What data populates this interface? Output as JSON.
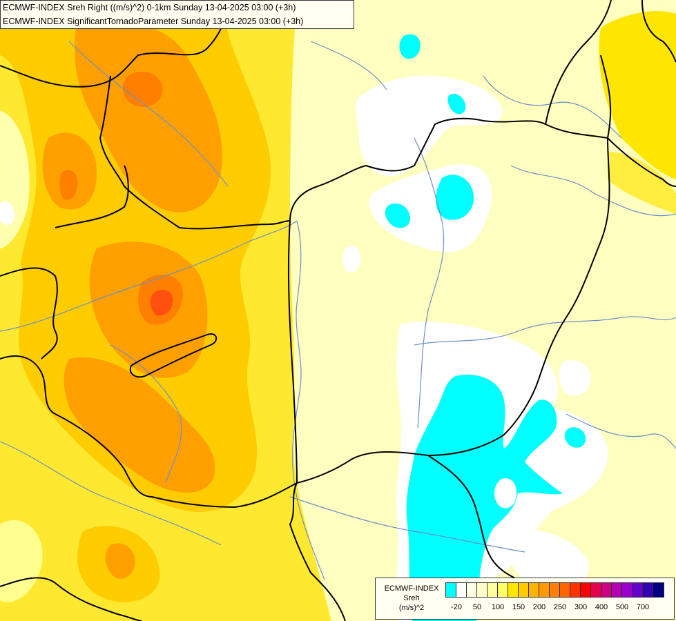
{
  "titles": {
    "line1": "ECMWF-INDEX Sreh Right ((m/s)^2) 0-1km Sunday 13-04-2025 03:00 (+3h)",
    "line2": "ECMWF-INDEX SignificantTornadoParameter Sunday 13-04-2025 03:00 (+3h)"
  },
  "legend": {
    "line1": "ECMWF-INDEX",
    "line2": "Sreh",
    "line3": "(m/s)^2",
    "colors": [
      "#00ffff",
      "#ffffff",
      "#ffffe6",
      "#ffffcc",
      "#ffffa0",
      "#ffff66",
      "#ffe600",
      "#ffcc00",
      "#ffb300",
      "#ff9900",
      "#ff8000",
      "#ff6600",
      "#ff3300",
      "#ff0000",
      "#e6004d",
      "#cc0080",
      "#b300b3",
      "#9900cc",
      "#6600cc",
      "#3300b3",
      "#000080"
    ],
    "labels": [
      "-20",
      "50",
      "100",
      "150",
      "200",
      "250",
      "300",
      "400",
      "500",
      "700"
    ]
  },
  "colors": {
    "cyan": "#00ffff",
    "white": "#ffffff",
    "pale_yellow": "#ffffc0",
    "yellow": "#ffe600",
    "orange_yellow": "#ffcc00",
    "orange": "#ffa000",
    "dark_orange": "#ff8000",
    "red_orange": "#ff5010",
    "border": "#000000",
    "river": "#6a8fc8"
  }
}
